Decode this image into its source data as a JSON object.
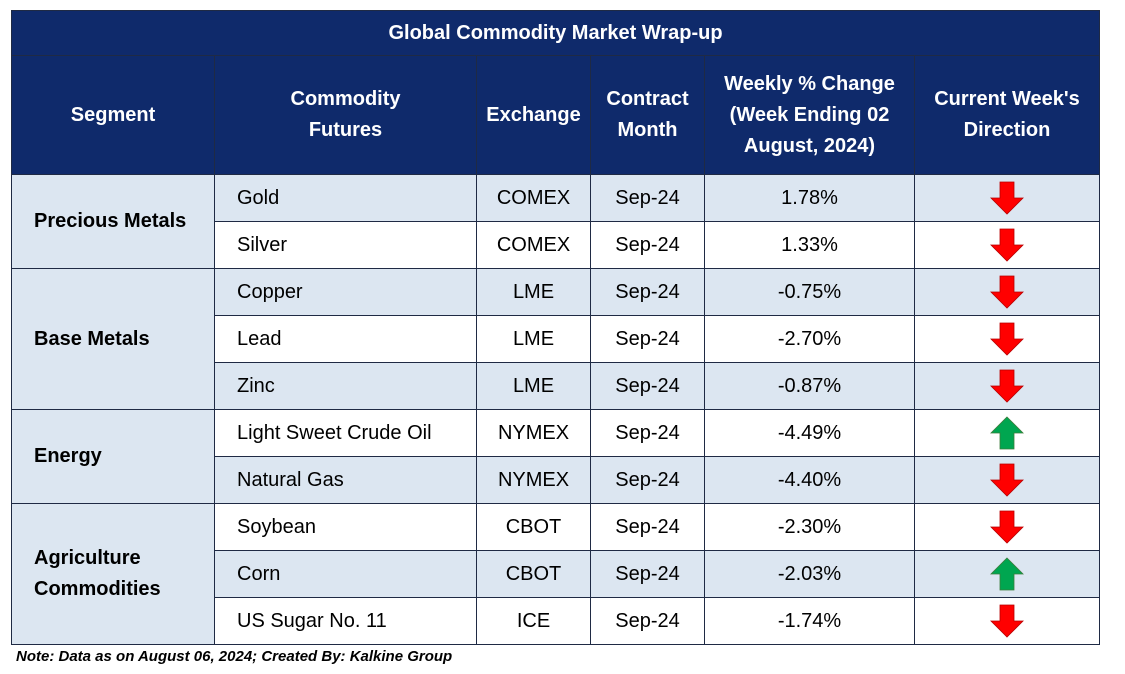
{
  "title": "Global Commodity Market Wrap-up",
  "headers": {
    "segment": "Segment",
    "commodity": "Commodity Futures",
    "exchange": "Exchange",
    "contract": "Contract Month",
    "weekly_line1": "Weekly % Change",
    "weekly_line2": "(Week Ending 02",
    "weekly_line3": "August, 2024)",
    "direction": "Current Week's Direction"
  },
  "segments": [
    {
      "label": "Precious Metals"
    },
    {
      "label": "Base Metals"
    },
    {
      "label": "Energy"
    },
    {
      "label_line1": "Agriculture",
      "label_line2": "Commodities"
    }
  ],
  "rows": [
    {
      "commodity": "Gold",
      "exchange": "COMEX",
      "contract": "Sep-24",
      "change": "1.78%",
      "direction": "down"
    },
    {
      "commodity": "Silver",
      "exchange": "COMEX",
      "contract": "Sep-24",
      "change": "1.33%",
      "direction": "down"
    },
    {
      "commodity": "Copper",
      "exchange": "LME",
      "contract": "Sep-24",
      "change": "-0.75%",
      "direction": "down"
    },
    {
      "commodity": "Lead",
      "exchange": "LME",
      "contract": "Sep-24",
      "change": "-2.70%",
      "direction": "down"
    },
    {
      "commodity": "Zinc",
      "exchange": "LME",
      "contract": "Sep-24",
      "change": "-0.87%",
      "direction": "down"
    },
    {
      "commodity": "Light Sweet Crude Oil",
      "exchange": "NYMEX",
      "contract": "Sep-24",
      "change": "-4.49%",
      "direction": "up"
    },
    {
      "commodity": "Natural Gas",
      "exchange": "NYMEX",
      "contract": "Sep-24",
      "change": "-4.40%",
      "direction": "down"
    },
    {
      "commodity": "Soybean",
      "exchange": "CBOT",
      "contract": "Sep-24",
      "change": "-2.30%",
      "direction": "down"
    },
    {
      "commodity": "Corn",
      "exchange": "CBOT",
      "contract": "Sep-24",
      "change": "-2.03%",
      "direction": "up"
    },
    {
      "commodity": "US Sugar No. 11",
      "exchange": "ICE",
      "contract": "Sep-24",
      "change": "-1.74%",
      "direction": "down"
    }
  ],
  "colors": {
    "down_arrow": "#ff0000",
    "up_arrow": "#00a650",
    "header_bg": "#0f2a6b",
    "band_bg": "#dce6f1"
  },
  "note": "Note: Data as on August 06, 2024; Created By: Kalkine Group"
}
